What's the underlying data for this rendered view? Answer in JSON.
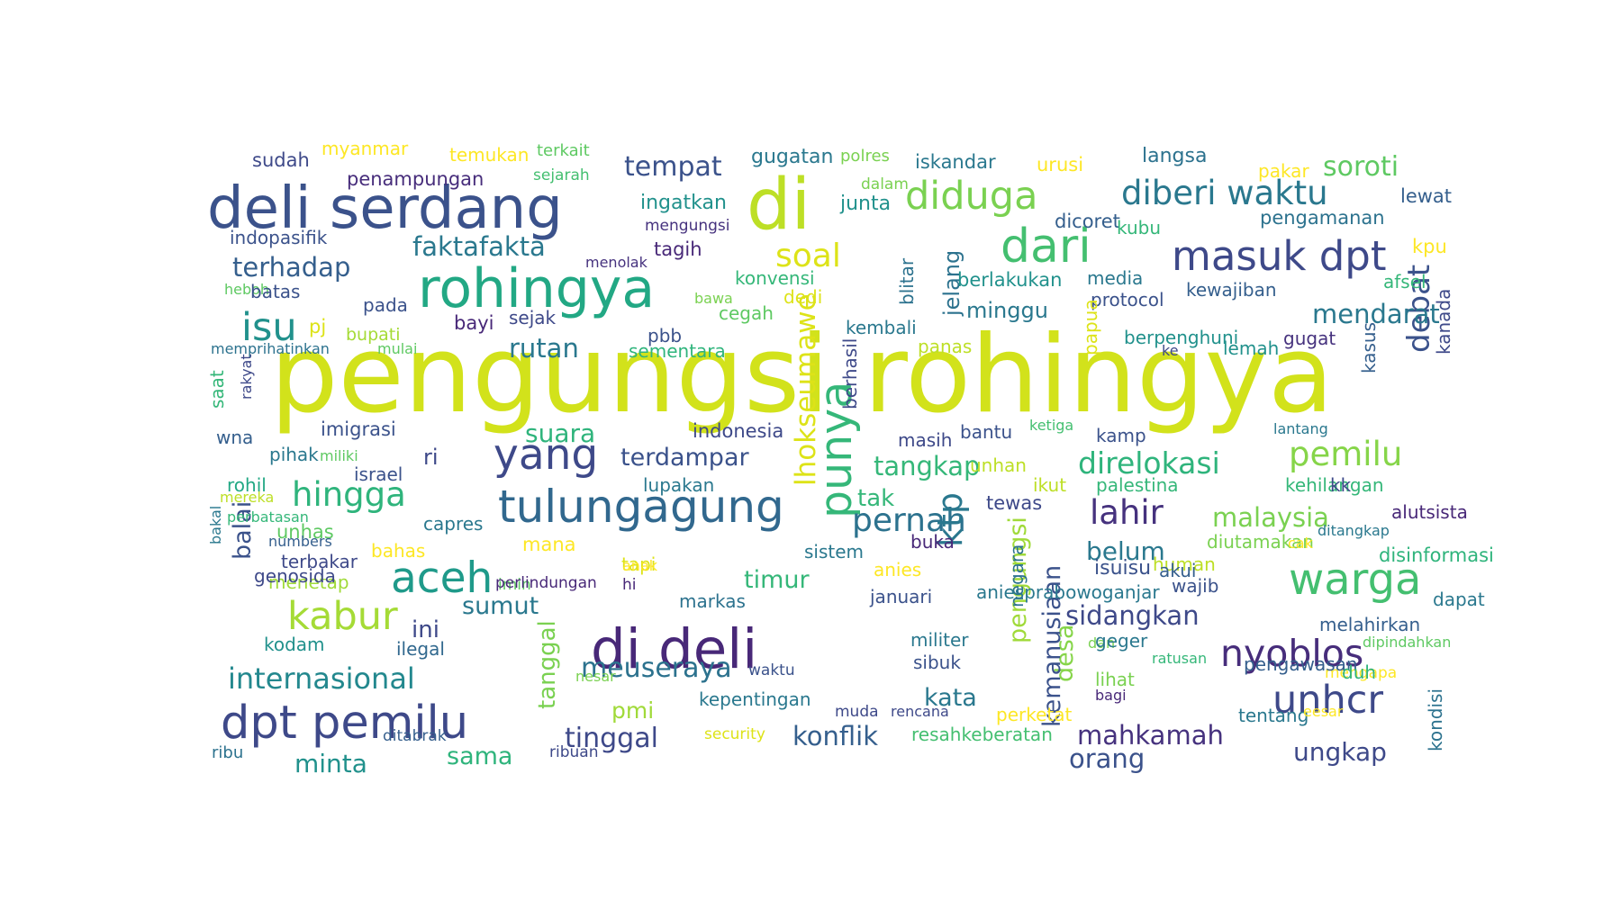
{
  "words": [
    {
      "t": "pengungsi rohingya",
      "c": "#d2e21b"
    },
    {
      "t": "deli serdang",
      "c": "#3b528b"
    },
    {
      "t": "di",
      "c": "#bddf26"
    },
    {
      "t": "rohingya",
      "c": "#22a884"
    },
    {
      "t": "dari",
      "c": "#44bf70"
    },
    {
      "t": "masuk dpt",
      "c": "#3e4989"
    },
    {
      "t": "di deli",
      "c": "#482878"
    },
    {
      "t": "dpt pemilu",
      "c": "#3e4989"
    },
    {
      "t": "tulungagung",
      "c": "#31688e"
    },
    {
      "t": "yang",
      "c": "#3e4989"
    },
    {
      "t": "aceh",
      "c": "#1f9a8a"
    },
    {
      "t": "warga",
      "c": "#44bf70"
    },
    {
      "t": "diduga",
      "c": "#7ad151"
    },
    {
      "t": "diberi waktu",
      "c": "#2a788e"
    },
    {
      "t": "isu",
      "c": "#21918c"
    },
    {
      "t": "kabur",
      "c": "#a5db36"
    },
    {
      "t": "hingga",
      "c": "#2fb47c"
    },
    {
      "t": "soal",
      "c": "#dde318"
    },
    {
      "t": "punya",
      "c": "#35b779"
    },
    {
      "t": "unhcr",
      "c": "#3e4989"
    },
    {
      "t": "nyoblos",
      "c": "#472d7b"
    },
    {
      "t": "pernah",
      "c": "#2c728e"
    },
    {
      "t": "pemilu",
      "c": "#86d549"
    },
    {
      "t": "debat",
      "c": "#3b528b"
    },
    {
      "t": "lahir",
      "c": "#46327e"
    },
    {
      "t": "direlokasi",
      "c": "#2fb47c"
    },
    {
      "t": "internasional",
      "c": "#23888e"
    },
    {
      "t": "ktp",
      "c": "#2a788e"
    },
    {
      "t": "tempat",
      "c": "#3b528b"
    },
    {
      "t": "faktafakta",
      "c": "#2a788e"
    },
    {
      "t": "terhadap",
      "c": "#355f8d"
    },
    {
      "t": "meuseraya",
      "c": "#2c728e"
    },
    {
      "t": "rutan",
      "c": "#2a788e"
    },
    {
      "t": "suara",
      "c": "#2fb47c"
    },
    {
      "t": "tangkap",
      "c": "#35b779"
    },
    {
      "t": "soroti",
      "c": "#5ec962"
    },
    {
      "t": "mendarat",
      "c": "#2a788e"
    },
    {
      "t": "lhokseumawe",
      "c": "#dde318"
    },
    {
      "t": "sidangkan",
      "c": "#3e4989"
    },
    {
      "t": "malaysia",
      "c": "#7ad151"
    },
    {
      "t": "mahkamah",
      "c": "#46327e"
    },
    {
      "t": "terdampar",
      "c": "#3b528b"
    },
    {
      "t": "sumut",
      "c": "#2a788e"
    },
    {
      "t": "timur",
      "c": "#35b779"
    },
    {
      "t": "tinggal",
      "c": "#3e4989"
    },
    {
      "t": "ungkap",
      "c": "#3e4989"
    },
    {
      "t": "orang",
      "c": "#3b528b"
    },
    {
      "t": "konflik",
      "c": "#355f8d"
    },
    {
      "t": "minta",
      "c": "#21918c"
    },
    {
      "t": "sama",
      "c": "#2fb47c"
    },
    {
      "t": "kata",
      "c": "#2a788e"
    },
    {
      "t": "tanggal",
      "c": "#7ad151"
    },
    {
      "t": "desa",
      "c": "#86d549"
    },
    {
      "t": "pengungsi",
      "c": "#a0da39"
    },
    {
      "t": "kemanusiaan",
      "c": "#3b528b"
    },
    {
      "t": "jelang",
      "c": "#2c728e"
    },
    {
      "t": "minggu",
      "c": "#2a788e"
    },
    {
      "t": "belum",
      "c": "#2a788e"
    },
    {
      "t": "balai",
      "c": "#3b528b"
    },
    {
      "t": "ini",
      "c": "#3e4989"
    },
    {
      "t": "pmi",
      "c": "#a0da39"
    },
    {
      "t": "tak",
      "c": "#35b779"
    },
    {
      "t": "ri",
      "c": "#3e4989"
    },
    {
      "t": "isuisu",
      "c": "#3b528b"
    },
    {
      "t": "sudah",
      "c": "#3e4989"
    },
    {
      "t": "myanmar",
      "c": "#fde725"
    },
    {
      "t": "temukan",
      "c": "#fde725"
    },
    {
      "t": "terkait",
      "c": "#5ec962"
    },
    {
      "t": "gugatan",
      "c": "#2a788e"
    },
    {
      "t": "polres",
      "c": "#7ad151"
    },
    {
      "t": "iskandar",
      "c": "#2a788e"
    },
    {
      "t": "urusi",
      "c": "#fde725"
    },
    {
      "t": "langsa",
      "c": "#2c728e"
    },
    {
      "t": "pakar",
      "c": "#fde725"
    },
    {
      "t": "penampungan",
      "c": "#472d7b"
    },
    {
      "t": "sejarah",
      "c": "#44bf70"
    },
    {
      "t": "dalam",
      "c": "#7ad151"
    },
    {
      "t": "junta",
      "c": "#21918c"
    },
    {
      "t": "lewat",
      "c": "#355f8d"
    },
    {
      "t": "ingatkan",
      "c": "#21918c"
    },
    {
      "t": "mengungsi",
      "c": "#46327e"
    },
    {
      "t": "dicoret",
      "c": "#355f8d"
    },
    {
      "t": "pengamanan",
      "c": "#2c728e"
    },
    {
      "t": "kubu",
      "c": "#35b779"
    },
    {
      "t": "indopasifik",
      "c": "#3b528b"
    },
    {
      "t": "tagih",
      "c": "#482878"
    },
    {
      "t": "kpu",
      "c": "#fde725"
    },
    {
      "t": "menolak",
      "c": "#46327e"
    },
    {
      "t": "konvensi",
      "c": "#35b779"
    },
    {
      "t": "berlakukan",
      "c": "#21918c"
    },
    {
      "t": "media",
      "c": "#2a788e"
    },
    {
      "t": "kewajiban",
      "c": "#355f8d"
    },
    {
      "t": "afsel",
      "c": "#35b779"
    },
    {
      "t": "heboh",
      "c": "#5ec962"
    },
    {
      "t": "batas",
      "c": "#3b528b"
    },
    {
      "t": "bawa",
      "c": "#7ad151"
    },
    {
      "t": "dedi",
      "c": "#dde318"
    },
    {
      "t": "blitar",
      "c": "#2c728e"
    },
    {
      "t": "protocol",
      "c": "#3b528b"
    },
    {
      "t": "pada",
      "c": "#3b528b"
    },
    {
      "t": "cegah",
      "c": "#5ec962"
    },
    {
      "t": "bayi",
      "c": "#482878"
    },
    {
      "t": "sejak",
      "c": "#3e4989"
    },
    {
      "t": "pj",
      "c": "#dde318"
    },
    {
      "t": "bupati",
      "c": "#a5db36"
    },
    {
      "t": "pbb",
      "c": "#3b528b"
    },
    {
      "t": "kembali",
      "c": "#2a788e"
    },
    {
      "t": "berpenghuni",
      "c": "#21918c"
    },
    {
      "t": "gugat",
      "c": "#46327e"
    },
    {
      "t": "memprihatinkan",
      "c": "#2c728e"
    },
    {
      "t": "mulai",
      "c": "#5ec962"
    },
    {
      "t": "sementara",
      "c": "#2fb47c"
    },
    {
      "t": "panas",
      "c": "#bddf26"
    },
    {
      "t": "papua",
      "c": "#dde318"
    },
    {
      "t": "ke",
      "c": "#3e4989"
    },
    {
      "t": "lemah",
      "c": "#21918c"
    },
    {
      "t": "kasus",
      "c": "#355f8d"
    },
    {
      "t": "kanada",
      "c": "#3e4989"
    },
    {
      "t": "saat",
      "c": "#35b779"
    },
    {
      "t": "rakyat",
      "c": "#3e4989"
    },
    {
      "t": "berhasil",
      "c": "#3e4989"
    },
    {
      "t": "imigrasi",
      "c": "#3b528b"
    },
    {
      "t": "indonesia",
      "c": "#3e4989"
    },
    {
      "t": "masih",
      "c": "#3e4989"
    },
    {
      "t": "bantu",
      "c": "#3b528b"
    },
    {
      "t": "ketiga",
      "c": "#44bf70"
    },
    {
      "t": "kamp",
      "c": "#3b528b"
    },
    {
      "t": "lantang",
      "c": "#2a788e"
    },
    {
      "t": "wna",
      "c": "#355f8d"
    },
    {
      "t": "pihak",
      "c": "#2a788e"
    },
    {
      "t": "miliki",
      "c": "#5ec962"
    },
    {
      "t": "israel",
      "c": "#3b528b"
    },
    {
      "t": "unhan",
      "c": "#bddf26"
    },
    {
      "t": "ikut",
      "c": "#bddf26"
    },
    {
      "t": "palestina",
      "c": "#35b779"
    },
    {
      "t": "kehilangan",
      "c": "#35b779"
    },
    {
      "t": "kk",
      "c": "#3e4989"
    },
    {
      "t": "rohil",
      "c": "#22a884"
    },
    {
      "t": "bakal",
      "c": "#2a788e"
    },
    {
      "t": "mereka",
      "c": "#bddf26"
    },
    {
      "t": "perbatasan",
      "c": "#35b779"
    },
    {
      "t": "lupakan",
      "c": "#2a788e"
    },
    {
      "t": "tewas",
      "c": "#3e4989"
    },
    {
      "t": "alutsista",
      "c": "#482878"
    },
    {
      "t": "unhas",
      "c": "#5ec962"
    },
    {
      "t": "capres",
      "c": "#2a788e"
    },
    {
      "t": "mana",
      "c": "#fde725"
    },
    {
      "t": "numbers",
      "c": "#355f8d"
    },
    {
      "t": "bahas",
      "c": "#fde725"
    },
    {
      "t": "sistem",
      "c": "#2a788e"
    },
    {
      "t": "buka",
      "c": "#482878"
    },
    {
      "t": "diutamakan",
      "c": "#7ad151"
    },
    {
      "t": "cak",
      "c": "#fde725"
    },
    {
      "t": "ditangkap",
      "c": "#2a788e"
    },
    {
      "t": "terbakar",
      "c": "#3e4989"
    },
    {
      "t": "tapi",
      "c": "#dde318"
    },
    {
      "t": "human",
      "c": "#bddf26"
    },
    {
      "t": "disinformasi",
      "c": "#2fb47c"
    },
    {
      "t": "menetap",
      "c": "#a0da39"
    },
    {
      "t": "imin",
      "c": "#5ec962"
    },
    {
      "t": "anak",
      "c": "#fde725"
    },
    {
      "t": "anies",
      "c": "#fde725"
    },
    {
      "t": "akui",
      "c": "#355f8d"
    },
    {
      "t": "genosida",
      "c": "#3e4989"
    },
    {
      "t": "perlindungan",
      "c": "#482878"
    },
    {
      "t": "hi",
      "c": "#482878"
    },
    {
      "t": "wajib",
      "c": "#3b528b"
    },
    {
      "t": "markas",
      "c": "#2c728e"
    },
    {
      "t": "januari",
      "c": "#3b528b"
    },
    {
      "t": "aniesprabowoganjar",
      "c": "#2a788e"
    },
    {
      "t": "negara",
      "c": "#2c728e"
    },
    {
      "t": "melahirkan",
      "c": "#355f8d"
    },
    {
      "t": "dapat",
      "c": "#2a788e"
    },
    {
      "t": "mengapa",
      "c": "#fde725"
    },
    {
      "t": "kondisi",
      "c": "#2c728e"
    },
    {
      "t": "kodam",
      "c": "#21918c"
    },
    {
      "t": "ilegal",
      "c": "#31688e"
    },
    {
      "t": "militer",
      "c": "#2a788e"
    },
    {
      "t": "dan",
      "c": "#7ad151"
    },
    {
      "t": "geger",
      "c": "#2a788e"
    },
    {
      "t": "dipindahkan",
      "c": "#5ec962"
    },
    {
      "t": "waktu",
      "c": "#3b528b"
    },
    {
      "t": "sibuk",
      "c": "#3b528b"
    },
    {
      "t": "ratusan",
      "c": "#35b779"
    },
    {
      "t": "pengawasan",
      "c": "#355f8d"
    },
    {
      "t": "nesar",
      "c": "#7ad151"
    },
    {
      "t": "lihat",
      "c": "#7ad151"
    },
    {
      "t": "duh",
      "c": "#2fb47c"
    },
    {
      "t": "bagi",
      "c": "#482878"
    },
    {
      "t": "kepentingan",
      "c": "#2a788e"
    },
    {
      "t": "muda",
      "c": "#3e4989"
    },
    {
      "t": "rencana",
      "c": "#3e4989"
    },
    {
      "t": "perketat",
      "c": "#fde725"
    },
    {
      "t": "tentang",
      "c": "#2a788e"
    },
    {
      "t": "eesar",
      "c": "#fde725"
    },
    {
      "t": "resahkeberatan",
      "c": "#44bf70"
    },
    {
      "t": "ditabrak",
      "c": "#355f8d"
    },
    {
      "t": "security",
      "c": "#dde318"
    },
    {
      "t": "ribu",
      "c": "#2c728e"
    },
    {
      "t": "ribuan",
      "c": "#3e4989"
    }
  ]
}
